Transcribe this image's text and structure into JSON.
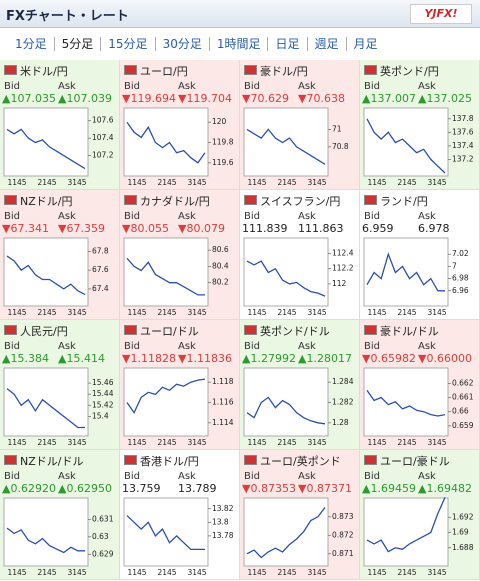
{
  "header": {
    "title": "FXチャート・レート",
    "logo": "YJFX!"
  },
  "tabs": [
    "1分足",
    "5分足",
    "15分足",
    "30分足",
    "1時間足",
    "日足",
    "週足",
    "月足"
  ],
  "selected_tab": 1,
  "bid_label": "Bid",
  "ask_label": "Ask",
  "x_labels": [
    "1145",
    "2145",
    "3145"
  ],
  "cards": [
    {
      "name": "米ドル/円",
      "bid": "▲107.035",
      "ask": "▲107.039",
      "color": "#e9f7e3",
      "text_color": "#2e9a2e",
      "chart": {
        "type": "line",
        "ylim": [
          107.0,
          107.7
        ],
        "yticks": [
          107.6,
          107.4,
          107.2
        ],
        "values": [
          107.5,
          107.45,
          107.5,
          107.4,
          107.35,
          107.38,
          107.3,
          107.25,
          107.2,
          107.15,
          107.1,
          107.05
        ]
      }
    },
    {
      "name": "ユーロ/円",
      "bid": "▼119.694",
      "ask": "▼119.704",
      "color": "#fde8e8",
      "text_color": "#e03c3c",
      "chart": {
        "type": "line",
        "ylim": [
          119.5,
          120.1
        ],
        "yticks": [
          120,
          119.8,
          119.6
        ],
        "values": [
          120.0,
          119.9,
          119.85,
          119.95,
          119.8,
          119.75,
          119.8,
          119.7,
          119.72,
          119.65,
          119.6,
          119.7
        ]
      }
    },
    {
      "name": "豪ドル/円",
      "bid": "▼70.629",
      "ask": "▼70.638",
      "color": "#fde8e8",
      "text_color": "#e03c3c",
      "chart": {
        "type": "line",
        "ylim": [
          70.5,
          71.2
        ],
        "yticks": [
          71,
          70.8
        ],
        "values": [
          71.0,
          70.95,
          70.9,
          71.0,
          70.9,
          70.85,
          70.9,
          70.8,
          70.75,
          70.7,
          70.65,
          70.6
        ]
      }
    },
    {
      "name": "英ポンド/円",
      "bid": "▲137.007",
      "ask": "▲137.025",
      "color": "#e9f7e3",
      "text_color": "#2e9a2e",
      "chart": {
        "type": "line",
        "ylim": [
          137.0,
          137.9
        ],
        "yticks": [
          137.8,
          137.6,
          137.4,
          137.2
        ],
        "values": [
          137.8,
          137.6,
          137.5,
          137.6,
          137.45,
          137.5,
          137.4,
          137.3,
          137.35,
          137.2,
          137.1,
          137.0
        ]
      }
    },
    {
      "name": "NZドル/円",
      "bid": "▼67.341",
      "ask": "▼67.359",
      "color": "#fde8e8",
      "text_color": "#e03c3c",
      "chart": {
        "type": "line",
        "ylim": [
          67.25,
          67.9
        ],
        "yticks": [
          67.8,
          67.6,
          67.4
        ],
        "values": [
          67.75,
          67.7,
          67.6,
          67.65,
          67.55,
          67.5,
          67.5,
          67.45,
          67.4,
          67.45,
          67.38,
          67.34
        ]
      }
    },
    {
      "name": "カナダドル/円",
      "bid": "▼80.055",
      "ask": "▼80.079",
      "color": "#fde8e8",
      "text_color": "#e03c3c",
      "chart": {
        "type": "line",
        "ylim": [
          79.95,
          80.7
        ],
        "yticks": [
          80.6,
          80.4,
          80.2
        ],
        "values": [
          80.5,
          80.4,
          80.35,
          80.45,
          80.3,
          80.25,
          80.2,
          80.2,
          80.15,
          80.1,
          80.05,
          80.05
        ]
      }
    },
    {
      "name": "スイスフラン/円",
      "bid": "111.839",
      "ask": "111.863",
      "color": "#ffffff",
      "text_color": "#222222",
      "chart": {
        "type": "line",
        "ylim": [
          111.75,
          112.55
        ],
        "yticks": [
          112.4,
          112.2,
          112
        ],
        "values": [
          112.3,
          112.25,
          112.3,
          112.15,
          112.2,
          112.05,
          112.0,
          112.02,
          111.95,
          111.9,
          111.88,
          111.84
        ]
      }
    },
    {
      "name": "ランド/円",
      "bid": "6.959",
      "ask": "6.978",
      "color": "#ffffff",
      "text_color": "#222222",
      "chart": {
        "type": "line",
        "ylim": [
          6.94,
          7.04
        ],
        "yticks": [
          7.02,
          7,
          6.98,
          6.96
        ],
        "values": [
          6.97,
          6.99,
          6.98,
          7.02,
          6.99,
          7.0,
          6.98,
          6.99,
          6.97,
          6.98,
          6.96,
          6.96
        ]
      }
    },
    {
      "name": "人民元/円",
      "bid": "▲15.384",
      "ask": "▲15.414",
      "color": "#e9f7e3",
      "text_color": "#2e9a2e",
      "chart": {
        "type": "line",
        "ylim": [
          15.37,
          15.48
        ],
        "yticks": [
          15.46,
          15.44,
          15.42,
          15.4
        ],
        "values": [
          15.45,
          15.44,
          15.42,
          15.43,
          15.41,
          15.43,
          15.42,
          15.41,
          15.4,
          15.39,
          15.38,
          15.38
        ]
      }
    },
    {
      "name": "ユーロ/ドル",
      "bid": "▼1.11828",
      "ask": "▼1.11836",
      "color": "#fde8e8",
      "text_color": "#e03c3c",
      "chart": {
        "type": "line",
        "ylim": [
          1.113,
          1.119
        ],
        "yticks": [
          1.118,
          1.116,
          1.114
        ],
        "values": [
          1.116,
          1.115,
          1.1165,
          1.117,
          1.1168,
          1.1175,
          1.1172,
          1.1178,
          1.1176,
          1.118,
          1.1182,
          1.1183
        ]
      }
    },
    {
      "name": "英ポンド/ドル",
      "bid": "▲1.27992",
      "ask": "▲1.28017",
      "color": "#e9f7e3",
      "text_color": "#2e9a2e",
      "chart": {
        "type": "line",
        "ylim": [
          1.279,
          1.285
        ],
        "yticks": [
          1.284,
          1.282,
          1.28
        ],
        "values": [
          1.281,
          1.2805,
          1.282,
          1.2825,
          1.2815,
          1.2822,
          1.2818,
          1.281,
          1.2805,
          1.2802,
          1.28,
          1.2799
        ]
      }
    },
    {
      "name": "豪ドル/ドル",
      "bid": "▼0.65982",
      "ask": "▼0.66000",
      "color": "#fde8e8",
      "text_color": "#e03c3c",
      "chart": {
        "type": "line",
        "ylim": [
          0.6585,
          0.6628
        ],
        "yticks": [
          0.662,
          0.661,
          0.66,
          0.659
        ],
        "values": [
          0.6615,
          0.6608,
          0.661,
          0.6605,
          0.6607,
          0.6602,
          0.6604,
          0.6601,
          0.66,
          0.6598,
          0.6597,
          0.6598
        ]
      }
    },
    {
      "name": "NZドル/ドル",
      "bid": "▲0.62920",
      "ask": "▲0.62950",
      "color": "#e9f7e3",
      "text_color": "#2e9a2e",
      "chart": {
        "type": "line",
        "ylim": [
          0.6285,
          0.632
        ],
        "yticks": [
          0.631,
          0.63,
          0.629
        ],
        "values": [
          0.6305,
          0.6302,
          0.6304,
          0.6298,
          0.6296,
          0.6299,
          0.6295,
          0.6293,
          0.6291,
          0.6294,
          0.6292,
          0.6292
        ]
      }
    },
    {
      "name": "香港ドル/円",
      "bid": "13.759",
      "ask": "13.789",
      "color": "#ffffff",
      "text_color": "#222222",
      "chart": {
        "type": "line",
        "ylim": [
          13.74,
          13.83
        ],
        "yticks": [
          13.82,
          13.8,
          13.78
        ],
        "values": [
          13.81,
          13.8,
          13.79,
          13.8,
          13.78,
          13.79,
          13.77,
          13.78,
          13.77,
          13.76,
          13.76,
          13.76
        ]
      }
    },
    {
      "name": "ユーロ/英ポンド",
      "bid": "▼0.87353",
      "ask": "▼0.87371",
      "color": "#fde8e8",
      "text_color": "#e03c3c",
      "chart": {
        "type": "line",
        "ylim": [
          0.8705,
          0.8738
        ],
        "yticks": [
          0.873,
          0.872,
          0.871
        ],
        "values": [
          0.871,
          0.8712,
          0.8708,
          0.8711,
          0.8713,
          0.8711,
          0.8715,
          0.8718,
          0.8722,
          0.8728,
          0.873,
          0.8735
        ]
      }
    },
    {
      "name": "ユーロ/豪ドル",
      "bid": "▲1.69459",
      "ask": "▲1.69482",
      "color": "#e9f7e3",
      "text_color": "#2e9a2e",
      "chart": {
        "type": "line",
        "ylim": [
          1.686,
          1.694
        ],
        "yticks": [
          1.692,
          1.69,
          1.688
        ],
        "values": [
          1.689,
          1.6885,
          1.689,
          1.6875,
          1.688,
          1.6878,
          1.6885,
          1.689,
          1.6895,
          1.69,
          1.6925,
          1.6946
        ]
      }
    }
  ]
}
